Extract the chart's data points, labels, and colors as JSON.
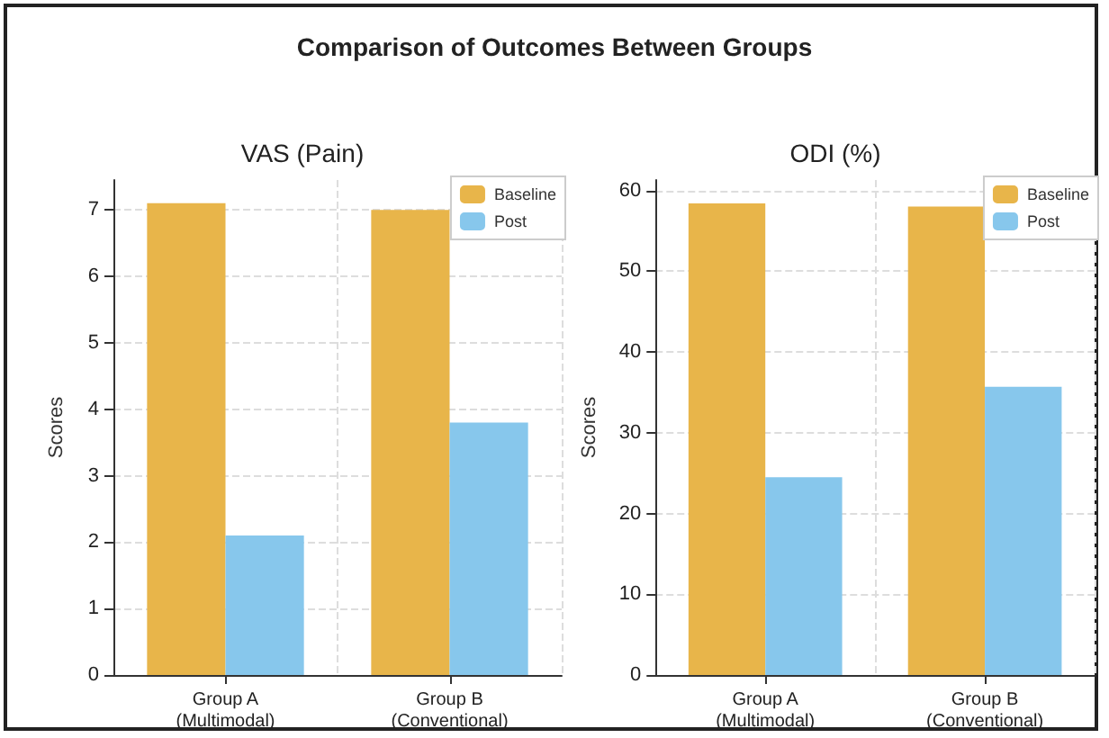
{
  "chart_data": [
    {
      "type": "other",
      "title": "Comparison of Outcomes Between Groups"
    },
    {
      "type": "bar",
      "title": "VAS (Pain)",
      "ylabel": "Scores",
      "categories": [
        "Group A\n(Multimodal)",
        "Group B\n(Conventional)"
      ],
      "series": [
        {
          "name": "Baseline",
          "color": "#e8b54a",
          "values": [
            7.1,
            7.0
          ]
        },
        {
          "name": "Post",
          "color": "#87c7ec",
          "values": [
            2.1,
            3.8
          ]
        }
      ],
      "ylim": [
        0,
        7.45
      ],
      "yticks": [
        0,
        1,
        2,
        3,
        4,
        5,
        6,
        7
      ],
      "grid": true,
      "legend": "top right"
    },
    {
      "type": "bar",
      "title": "ODI (%)",
      "ylabel": "Scores",
      "categories": [
        "Group A\n(Multimodal)",
        "Group B\n(Conventional)"
      ],
      "series": [
        {
          "name": "Baseline",
          "color": "#e8b54a",
          "values": [
            58.4,
            58.0
          ]
        },
        {
          "name": "Post",
          "color": "#87c7ec",
          "values": [
            24.5,
            35.7
          ]
        }
      ],
      "ylim": [
        0,
        61.3
      ],
      "yticks": [
        0,
        10,
        20,
        30,
        40,
        50,
        60
      ],
      "grid": true,
      "legend": "top right"
    }
  ]
}
